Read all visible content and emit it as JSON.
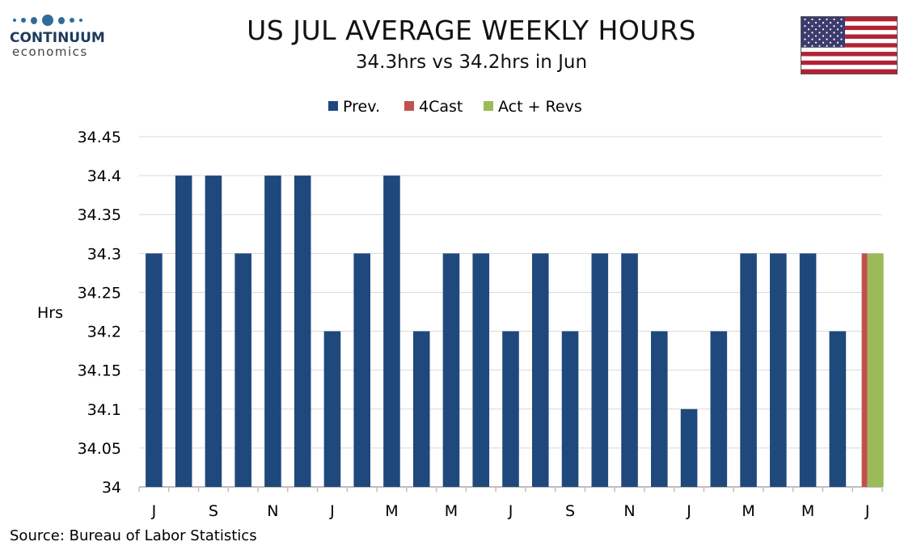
{
  "header": {
    "brand_name": "CONTINUUM",
    "brand_sub": "economics",
    "title": "US JUL AVERAGE WEEKLY HOURS",
    "subtitle": "34.3hrs vs 34.2hrs in Jun"
  },
  "footer": {
    "source": "Source: Bureau of Labor Statistics"
  },
  "colors": {
    "prev": "#1f497d",
    "forecast": "#c0504d",
    "actual": "#9bbb59",
    "grid": "#d9d9d9",
    "axis": "#bfbfbf",
    "logo": "#2e6d99",
    "flag_red": "#b22234",
    "flag_blue": "#3c3b6e"
  },
  "chart_data": {
    "type": "bar",
    "ylabel": "Hrs",
    "xlabel": "",
    "ylim": [
      34,
      34.45
    ],
    "yticks": [
      "34",
      "34.05",
      "34.1",
      "34.15",
      "34.2",
      "34.25",
      "34.3",
      "34.35",
      "34.4",
      "34.45"
    ],
    "grid": true,
    "legend_position": "top-center",
    "x_tick_labels": [
      "J",
      "S",
      "N",
      "J",
      "M",
      "M",
      "J",
      "S",
      "N",
      "J",
      "M",
      "M",
      "J"
    ],
    "x_tick_label_every": 2,
    "series": [
      {
        "name": "Prev.",
        "values": [
          34.3,
          34.4,
          34.4,
          34.3,
          34.4,
          34.4,
          34.2,
          34.3,
          34.4,
          34.2,
          34.3,
          34.3,
          34.2,
          34.3,
          34.2,
          34.3,
          34.3,
          34.2,
          34.1,
          34.2,
          34.3,
          34.3,
          34.3,
          34.2,
          null
        ]
      },
      {
        "name": "4Cast",
        "values": [
          null,
          null,
          null,
          null,
          null,
          null,
          null,
          null,
          null,
          null,
          null,
          null,
          null,
          null,
          null,
          null,
          null,
          null,
          null,
          null,
          null,
          null,
          null,
          null,
          34.3
        ]
      },
      {
        "name": "Act + Revs",
        "values": [
          null,
          null,
          null,
          null,
          null,
          null,
          null,
          null,
          null,
          null,
          null,
          null,
          null,
          null,
          null,
          null,
          null,
          null,
          null,
          null,
          null,
          null,
          null,
          null,
          34.3
        ]
      }
    ]
  }
}
